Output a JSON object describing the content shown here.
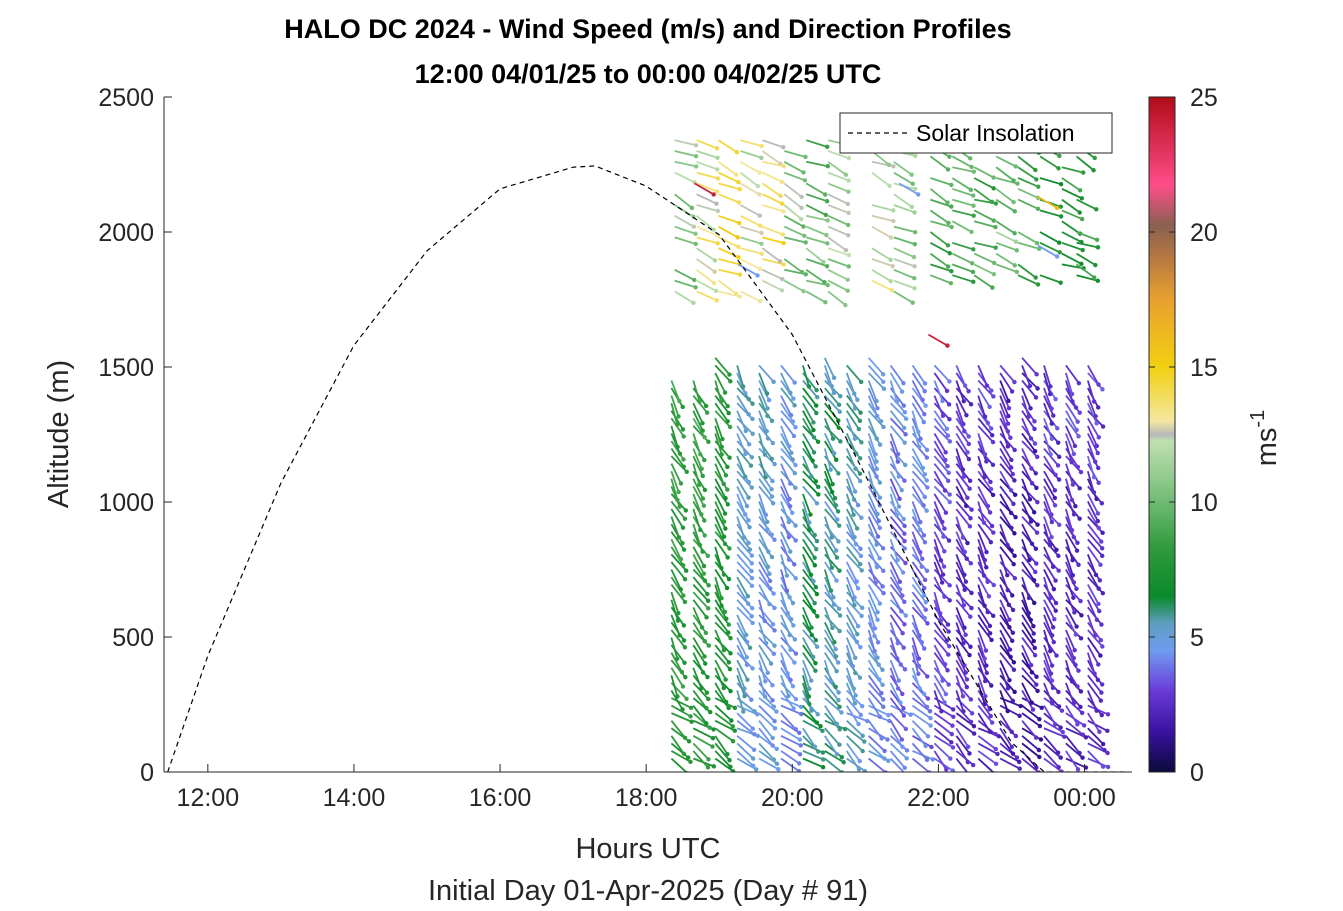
{
  "chart_data": {
    "type": "scatter",
    "title": "HALO DC 2024 - Wind Speed (m/s) and Direction Profiles",
    "subtitle": "12:00 04/01/25 to 00:00 04/02/25  UTC",
    "xlabel": "Hours UTC",
    "footnote": "Initial Day 01-Apr-2025 (Day # 91)",
    "ylabel": "Altitude (m)",
    "xlim": [
      11.4,
      24.65
    ],
    "ylim": [
      0,
      2500
    ],
    "x_ticks": [
      12,
      14,
      16,
      18,
      20,
      22,
      24
    ],
    "x_tick_labels": [
      "12:00",
      "14:00",
      "16:00",
      "18:00",
      "20:00",
      "22:00",
      "00:00"
    ],
    "y_ticks": [
      0,
      500,
      1000,
      1500,
      2000,
      2500
    ],
    "y_tick_labels": [
      "0",
      "500",
      "1000",
      "1500",
      "2000",
      "2500"
    ],
    "legend": {
      "position": "top-right",
      "entries": [
        "Solar Insolation"
      ]
    },
    "colorbar": {
      "label": "ms",
      "label_exponent": "-1",
      "range": [
        0,
        25
      ],
      "ticks": [
        0,
        5,
        10,
        15,
        20,
        25
      ],
      "tick_labels": [
        "0",
        "5",
        "10",
        "15",
        "20",
        "25"
      ]
    },
    "solar_insolation": {
      "style": "dashed",
      "x": [
        11.45,
        12.0,
        13.0,
        14.0,
        15.0,
        16.0,
        17.0,
        17.3,
        18.0,
        19.0,
        20.0,
        21.0,
        22.0,
        23.0,
        23.45,
        24.6
      ],
      "y": [
        0,
        430,
        1070,
        1580,
        1930,
        2160,
        2240,
        2245,
        2170,
        1990,
        1620,
        1100,
        560,
        110,
        0,
        0
      ]
    },
    "wind_profiles": {
      "description": "wind barbs (speed color-coded, direction by arrow) at profile times",
      "times": [
        18.4,
        18.7,
        19.0,
        19.3,
        19.6,
        19.9,
        20.2,
        20.5,
        20.8,
        21.1,
        21.4,
        21.7,
        22.0,
        22.3,
        22.6,
        22.9,
        23.2,
        23.5,
        23.8,
        24.1
      ],
      "lower_layer": {
        "altitude_range": [
          50,
          1540
        ],
        "speed_by_time_ms": [
          8.0,
          8.0,
          7.5,
          5.0,
          4.8,
          4.5,
          6.0,
          5.5,
          5.0,
          4.5,
          4.0,
          4.0,
          3.0,
          2.5,
          2.5,
          2.0,
          2.0,
          2.5,
          2.5,
          2.5
        ]
      },
      "upper_layer": {
        "altitude_range": [
          1780,
          2460
        ],
        "times_present": [
          18.5,
          18.8,
          19.1,
          19.4,
          19.7,
          20.0,
          20.3,
          20.6,
          21.2,
          21.5,
          22.0,
          22.3,
          22.6,
          22.9,
          23.2,
          23.5,
          23.8,
          24.0
        ],
        "speed_by_time_ms": [
          11,
          13,
          14,
          12.5,
          13.5,
          11,
          10,
          11.5,
          12,
          11,
          9,
          9,
          9,
          10,
          9,
          8,
          8,
          8
        ]
      },
      "outliers": [
        {
          "x": 18.8,
          "y": 2180,
          "speed": 24
        },
        {
          "x": 22.0,
          "y": 1620,
          "speed": 24
        },
        {
          "x": 21.6,
          "y": 2180,
          "speed": 4.5
        },
        {
          "x": 23.5,
          "y": 2130,
          "speed": 16
        },
        {
          "x": 23.5,
          "y": 1950,
          "speed": 4.5
        },
        {
          "x": 19.4,
          "y": 1880,
          "speed": 4.5
        }
      ]
    }
  }
}
